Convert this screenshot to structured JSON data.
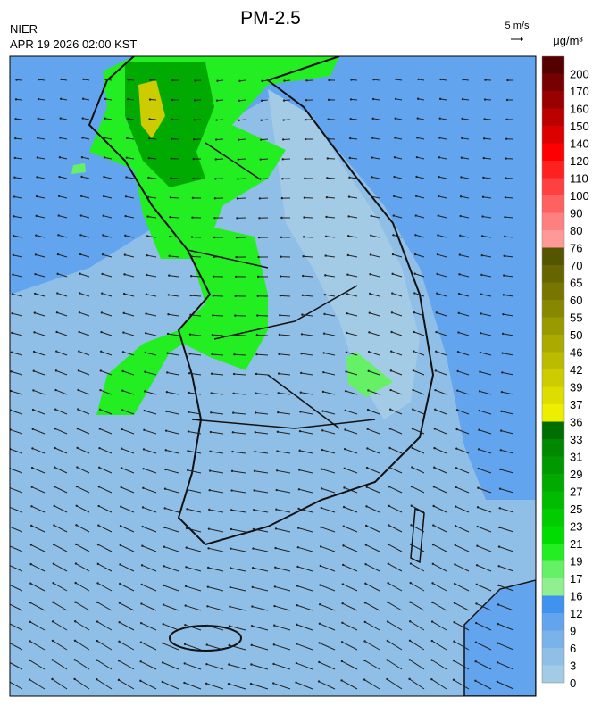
{
  "header": {
    "title": "PM-2.5",
    "source": "NIER",
    "time": "APR 19 2026 02:00 KST",
    "wind_scale": "5 m/s"
  },
  "legend": {
    "unit": "μg/m³",
    "labels": [
      "0",
      "3",
      "6",
      "9",
      "12",
      "16",
      "17",
      "19",
      "21",
      "23",
      "25",
      "27",
      "29",
      "31",
      "33",
      "36",
      "37",
      "39",
      "42",
      "46",
      "50",
      "55",
      "60",
      "65",
      "70",
      "76",
      "80",
      "90",
      "100",
      "110",
      "120",
      "140",
      "150",
      "160",
      "170",
      "200"
    ],
    "colors": [
      "#a3cbe6",
      "#8fbfe6",
      "#7ab2ea",
      "#63a4ee",
      "#3f92f0",
      "#90f090",
      "#66f066",
      "#22ee22",
      "#00dd00",
      "#00cc00",
      "#00bb00",
      "#00aa00",
      "#009900",
      "#008800",
      "#006e00",
      "#eeee00",
      "#dddd00",
      "#cccc00",
      "#bbbb00",
      "#aaaa00",
      "#999900",
      "#888800",
      "#777700",
      "#666600",
      "#555500",
      "#ff9999",
      "#ff8080",
      "#ff6060",
      "#ff4040",
      "#ff2020",
      "#ff0000",
      "#dd0000",
      "#bb0000",
      "#990000",
      "#770000",
      "#550000"
    ]
  }
}
